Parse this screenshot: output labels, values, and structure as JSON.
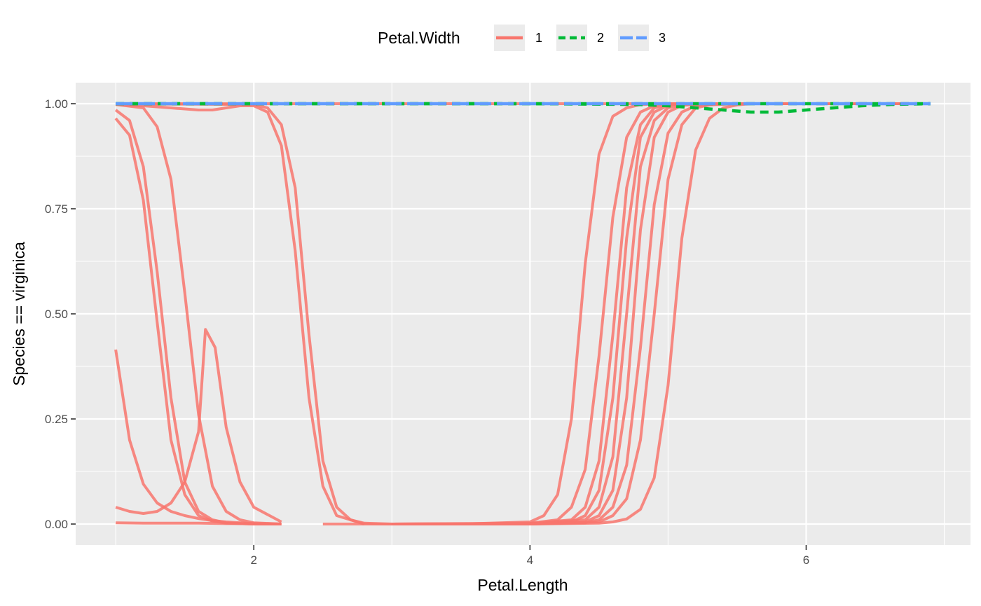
{
  "chart_data": {
    "type": "line",
    "xlabel": "Petal.Length",
    "ylabel": "Species == virginica",
    "xlim": [
      0.71,
      7.19
    ],
    "ylim": [
      -0.05,
      1.05
    ],
    "x_ticks": [
      2,
      4,
      6
    ],
    "y_ticks": [
      0.0,
      0.25,
      0.5,
      0.75,
      1.0
    ],
    "x_tick_labels": [
      "2",
      "4",
      "6"
    ],
    "y_tick_labels": [
      "0.00",
      "0.25",
      "0.50",
      "0.75",
      "1.00"
    ],
    "grid": true,
    "legend": {
      "title": "Petal.Width",
      "position": "top",
      "entries": [
        {
          "label": "1",
          "color": "#F8766D",
          "linetype": "solid"
        },
        {
          "label": "2",
          "color": "#00BA38",
          "linetype": "dashed"
        },
        {
          "label": "3",
          "color": "#619CFF",
          "linetype": "longdash"
        }
      ]
    },
    "series": [
      {
        "group": "1",
        "x": [
          1.0,
          1.1,
          1.2,
          1.3,
          1.4,
          1.5,
          1.6,
          1.7,
          1.8,
          1.9,
          2.0,
          2.2
        ],
        "y": [
          0.985,
          0.96,
          0.85,
          0.6,
          0.3,
          0.1,
          0.03,
          0.01,
          0.003,
          0.001,
          0.0,
          0.0
        ]
      },
      {
        "group": "1",
        "x": [
          1.0,
          1.1,
          1.2,
          1.3,
          1.4,
          1.5,
          1.6,
          1.7,
          1.8,
          2.0,
          2.2
        ],
        "y": [
          0.965,
          0.925,
          0.77,
          0.48,
          0.2,
          0.07,
          0.02,
          0.007,
          0.002,
          0.0,
          0.0
        ]
      },
      {
        "group": "1",
        "x": [
          1.0,
          1.2,
          1.3,
          1.4,
          1.5,
          1.6,
          1.7,
          1.8,
          1.9,
          2.0,
          2.2
        ],
        "y": [
          0.998,
          0.99,
          0.945,
          0.82,
          0.55,
          0.26,
          0.09,
          0.03,
          0.01,
          0.003,
          0.0
        ]
      },
      {
        "group": "1",
        "x": [
          1.0,
          1.1,
          1.2,
          1.3,
          1.4,
          1.5,
          1.6,
          1.7,
          1.8,
          1.9,
          2.0,
          2.2
        ],
        "y": [
          0.415,
          0.2,
          0.095,
          0.05,
          0.03,
          0.02,
          0.013,
          0.008,
          0.005,
          0.003,
          0.001,
          0.0
        ]
      },
      {
        "group": "1",
        "x": [
          1.0,
          1.1,
          1.2,
          1.3,
          1.4,
          1.5,
          1.6,
          1.65,
          1.72,
          1.8,
          1.9,
          2.0,
          2.2
        ],
        "y": [
          0.04,
          0.03,
          0.025,
          0.03,
          0.05,
          0.1,
          0.22,
          0.463,
          0.42,
          0.23,
          0.1,
          0.04,
          0.005
        ]
      },
      {
        "group": "1",
        "x": [
          1.0,
          1.2,
          1.4,
          1.6,
          1.8,
          2.0,
          2.2
        ],
        "y": [
          0.003,
          0.002,
          0.002,
          0.002,
          0.001,
          0.001,
          0.0
        ]
      },
      {
        "group": "1",
        "x": [
          1.0,
          1.2,
          1.4,
          1.6,
          1.7,
          1.8,
          1.9,
          2.0,
          2.1,
          2.2,
          2.3,
          2.4,
          2.5,
          2.6,
          2.8
        ],
        "y": [
          0.998,
          0.995,
          0.99,
          0.985,
          0.985,
          0.99,
          0.995,
          0.995,
          0.98,
          0.9,
          0.65,
          0.3,
          0.09,
          0.02,
          0.0
        ]
      },
      {
        "group": "1",
        "x": [
          1.0,
          1.5,
          2.0,
          2.1,
          2.2,
          2.3,
          2.4,
          2.5,
          2.6,
          2.7,
          2.8,
          3.0
        ],
        "y": [
          0.999,
          0.999,
          0.998,
          0.99,
          0.95,
          0.8,
          0.45,
          0.15,
          0.04,
          0.01,
          0.002,
          0.0
        ]
      },
      {
        "group": "1",
        "x": [
          2.5,
          3.0,
          3.5,
          4.0,
          4.1,
          4.2,
          4.3,
          4.4,
          4.5,
          4.6,
          4.7,
          4.8,
          5.0,
          5.5,
          6.0,
          6.9
        ],
        "y": [
          0.0,
          0.0,
          0.0,
          0.005,
          0.02,
          0.07,
          0.25,
          0.62,
          0.88,
          0.97,
          0.99,
          0.998,
          1.0,
          1.0,
          1.0,
          1.0
        ]
      },
      {
        "group": "1",
        "x": [
          3.0,
          4.0,
          4.2,
          4.3,
          4.4,
          4.5,
          4.6,
          4.7,
          4.8,
          4.9,
          5.0,
          5.2,
          6.0,
          6.9
        ],
        "y": [
          0.0,
          0.002,
          0.01,
          0.04,
          0.13,
          0.4,
          0.73,
          0.92,
          0.98,
          0.995,
          0.999,
          1.0,
          1.0,
          1.0
        ]
      },
      {
        "group": "1",
        "x": [
          3.0,
          4.0,
          4.3,
          4.4,
          4.5,
          4.6,
          4.7,
          4.8,
          4.9,
          5.0,
          5.2,
          6.0,
          6.9
        ],
        "y": [
          0.0,
          0.001,
          0.01,
          0.04,
          0.15,
          0.45,
          0.8,
          0.95,
          0.99,
          0.998,
          1.0,
          1.0,
          1.0
        ]
      },
      {
        "group": "1",
        "x": [
          3.0,
          4.0,
          4.3,
          4.4,
          4.5,
          4.6,
          4.7,
          4.8,
          4.9,
          5.0,
          5.2,
          6.0,
          6.9
        ],
        "y": [
          0.0,
          0.001,
          0.005,
          0.02,
          0.08,
          0.3,
          0.68,
          0.92,
          0.98,
          0.996,
          1.0,
          1.0,
          1.0
        ]
      },
      {
        "group": "1",
        "x": [
          3.0,
          4.0,
          4.4,
          4.5,
          4.6,
          4.7,
          4.8,
          4.9,
          5.0,
          5.1,
          5.3,
          6.0,
          6.9
        ],
        "y": [
          0.0,
          0.001,
          0.01,
          0.04,
          0.16,
          0.5,
          0.85,
          0.96,
          0.99,
          0.998,
          1.0,
          1.0,
          1.0
        ]
      },
      {
        "group": "1",
        "x": [
          3.0,
          4.0,
          4.4,
          4.5,
          4.6,
          4.7,
          4.8,
          4.9,
          5.0,
          5.1,
          5.3,
          6.0,
          6.9
        ],
        "y": [
          0.0,
          0.0,
          0.005,
          0.02,
          0.08,
          0.3,
          0.7,
          0.92,
          0.98,
          0.996,
          1.0,
          1.0,
          1.0
        ]
      },
      {
        "group": "1",
        "x": [
          3.0,
          4.0,
          4.4,
          4.5,
          4.6,
          4.7,
          4.8,
          4.9,
          5.0,
          5.1,
          5.2,
          5.4,
          6.0,
          6.9
        ],
        "y": [
          0.0,
          0.0,
          0.003,
          0.01,
          0.04,
          0.14,
          0.42,
          0.76,
          0.93,
          0.98,
          0.995,
          1.0,
          1.0,
          1.0
        ]
      },
      {
        "group": "1",
        "x": [
          3.0,
          4.0,
          4.5,
          4.6,
          4.7,
          4.8,
          4.9,
          5.0,
          5.1,
          5.2,
          5.3,
          5.5,
          6.0,
          6.9
        ],
        "y": [
          0.0,
          0.0,
          0.005,
          0.02,
          0.06,
          0.2,
          0.5,
          0.82,
          0.95,
          0.99,
          0.997,
          1.0,
          1.0,
          1.0
        ]
      },
      {
        "group": "1",
        "x": [
          3.0,
          4.0,
          4.5,
          4.6,
          4.7,
          4.8,
          4.9,
          5.0,
          5.1,
          5.2,
          5.3,
          5.4,
          5.5,
          5.6,
          6.0,
          6.9
        ],
        "y": [
          0.0,
          0.0,
          0.002,
          0.005,
          0.012,
          0.035,
          0.11,
          0.33,
          0.68,
          0.89,
          0.965,
          0.99,
          0.997,
          1.0,
          1.0,
          1.0
        ]
      },
      {
        "group": "1",
        "x": [
          1.0,
          6.9
        ],
        "y": [
          1.0,
          1.0
        ]
      },
      {
        "group": "2",
        "x": [
          1.0,
          4.0,
          4.8,
          5.0,
          5.2,
          5.4,
          5.6,
          5.8,
          6.0,
          6.2,
          6.4,
          6.6,
          6.9
        ],
        "y": [
          1.0,
          1.0,
          0.998,
          0.995,
          0.99,
          0.985,
          0.98,
          0.98,
          0.985,
          0.99,
          0.995,
          0.998,
          1.0
        ]
      },
      {
        "group": "2",
        "x": [
          1.0,
          6.9
        ],
        "y": [
          1.0,
          1.0
        ]
      },
      {
        "group": "3",
        "x": [
          1.0,
          6.9
        ],
        "y": [
          1.0,
          1.0
        ]
      }
    ]
  }
}
